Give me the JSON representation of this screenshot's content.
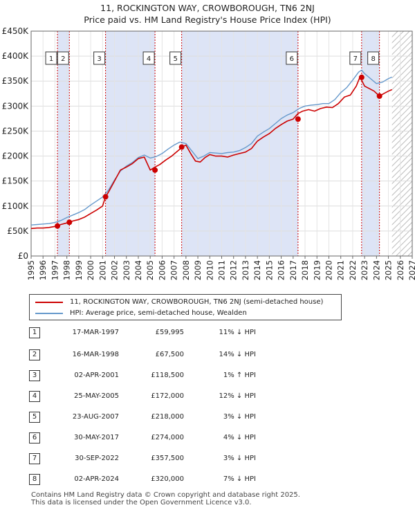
{
  "title": "11, ROCKINGTON WAY, CROWBOROUGH, TN6 2NJ",
  "subtitle": "Price paid vs. HM Land Registry's House Price Index (HPI)",
  "colors": {
    "property": "#cc0000",
    "hpi": "#6699cc",
    "shade": "#dde4f6",
    "marker_line": "#cc0000"
  },
  "chart_data": {
    "type": "line",
    "title": "11, ROCKINGTON WAY, CROWBOROUGH, TN6 2NJ",
    "subtitle": "Price paid vs. HM Land Registry's House Price Index (HPI)",
    "xlim": [
      1995,
      2027
    ],
    "ylim": [
      0,
      450000
    ],
    "x_ticks": [
      1995,
      1996,
      1997,
      1998,
      1999,
      2000,
      2001,
      2002,
      2003,
      2004,
      2005,
      2006,
      2007,
      2008,
      2009,
      2010,
      2011,
      2012,
      2013,
      2014,
      2015,
      2016,
      2017,
      2018,
      2019,
      2020,
      2021,
      2022,
      2023,
      2024,
      2025,
      2026,
      2027
    ],
    "y_ticks": [
      {
        "value": 0,
        "label": "£0"
      },
      {
        "value": 50000,
        "label": "£50K"
      },
      {
        "value": 100000,
        "label": "£100K"
      },
      {
        "value": 150000,
        "label": "£150K"
      },
      {
        "value": 200000,
        "label": "£200K"
      },
      {
        "value": 250000,
        "label": "£250K"
      },
      {
        "value": 300000,
        "label": "£300K"
      },
      {
        "value": 350000,
        "label": "£350K"
      },
      {
        "value": 400000,
        "label": "£400K"
      },
      {
        "value": 450000,
        "label": "£450K"
      }
    ],
    "forecast_from": 2025.3,
    "series": [
      {
        "name": "11, ROCKINGTON WAY, CROWBOROUGH, TN6 2NJ (semi-detached house)",
        "color": "#cc0000",
        "x": [
          1995,
          1995.5,
          1996,
          1996.5,
          1997.2,
          1997.5,
          1998.2,
          1998.5,
          1999,
          1999.5,
          2000,
          2000.5,
          2001.0,
          2001.25,
          2001.5,
          2002,
          2002.5,
          2003,
          2003.5,
          2004,
          2004.5,
          2005.0,
          2005.4,
          2005.8,
          2006.3,
          2006.8,
          2007.4,
          2007.65,
          2008.0,
          2008.4,
          2008.8,
          2009.2,
          2009.6,
          2010,
          2010.5,
          2011,
          2011.5,
          2012,
          2012.5,
          2013,
          2013.5,
          2014,
          2014.5,
          2015,
          2015.5,
          2016,
          2016.5,
          2017.0,
          2017.4,
          2017.8,
          2018.3,
          2018.8,
          2019.3,
          2019.8,
          2020.3,
          2020.8,
          2021.3,
          2021.8,
          2022.3,
          2022.6,
          2022.75,
          2023.0,
          2023.4,
          2023.8,
          2024.25,
          2024.6,
          2025.0,
          2025.3
        ],
        "values": [
          55000,
          56000,
          56000,
          57000,
          59995,
          63000,
          67500,
          70000,
          73000,
          78000,
          85000,
          92000,
          100000,
          118500,
          128000,
          150000,
          172000,
          178000,
          185000,
          195000,
          198000,
          172000,
          178000,
          183000,
          192000,
          200000,
          212000,
          218000,
          222000,
          205000,
          190000,
          188000,
          197000,
          203000,
          200000,
          200000,
          198000,
          202000,
          205000,
          208000,
          215000,
          230000,
          238000,
          245000,
          255000,
          263000,
          270000,
          274000,
          285000,
          290000,
          293000,
          290000,
          295000,
          298000,
          297000,
          305000,
          318000,
          322000,
          340000,
          357500,
          352000,
          340000,
          335000,
          330000,
          320000,
          325000,
          330000,
          333000
        ]
      },
      {
        "name": "HPI: Average price, semi-detached house, Wealden",
        "color": "#6699cc",
        "x": [
          1995,
          1995.5,
          1996,
          1996.5,
          1997,
          1997.5,
          1998,
          1998.5,
          1999,
          1999.5,
          2000,
          2000.5,
          2001,
          2001.5,
          2002,
          2002.5,
          2003,
          2003.5,
          2004,
          2004.5,
          2005,
          2005.5,
          2006,
          2006.5,
          2007,
          2007.5,
          2008,
          2008.5,
          2009,
          2009.5,
          2010,
          2010.5,
          2011,
          2011.5,
          2012,
          2012.5,
          2013,
          2013.5,
          2014,
          2014.5,
          2015,
          2015.5,
          2016,
          2016.5,
          2017,
          2017.5,
          2018,
          2018.5,
          2019,
          2019.5,
          2020,
          2020.5,
          2021,
          2021.5,
          2022,
          2022.5,
          2022.75,
          2023,
          2023.5,
          2024,
          2024.5,
          2025,
          2025.3
        ],
        "values": [
          62000,
          63000,
          64000,
          65000,
          67000,
          71000,
          77000,
          82000,
          87000,
          93000,
          102000,
          110000,
          118000,
          132000,
          152000,
          170000,
          180000,
          187000,
          197000,
          202000,
          196000,
          199000,
          205000,
          214000,
          222000,
          228000,
          225000,
          210000,
          195000,
          200000,
          207000,
          206000,
          205000,
          207000,
          208000,
          211000,
          217000,
          225000,
          240000,
          248000,
          255000,
          265000,
          275000,
          282000,
          287000,
          295000,
          300000,
          302000,
          303000,
          305000,
          305000,
          313000,
          327000,
          337000,
          352000,
          368000,
          372000,
          365000,
          355000,
          345000,
          348000,
          355000,
          358000
        ]
      }
    ],
    "sales": [
      {
        "n": "1",
        "x": 1997.21,
        "price": 59995
      },
      {
        "n": "2",
        "x": 1998.21,
        "price": 67500
      },
      {
        "n": "3",
        "x": 2001.25,
        "price": 118500
      },
      {
        "n": "4",
        "x": 2005.4,
        "price": 172000
      },
      {
        "n": "5",
        "x": 2007.64,
        "price": 218000
      },
      {
        "n": "6",
        "x": 2017.41,
        "price": 274000
      },
      {
        "n": "7",
        "x": 2022.75,
        "price": 357500
      },
      {
        "n": "8",
        "x": 2024.25,
        "price": 320000
      }
    ],
    "shaded_ranges": [
      [
        1997.21,
        1998.21
      ],
      [
        2001.25,
        2005.4
      ],
      [
        2007.64,
        2017.41
      ],
      [
        2022.75,
        2024.25
      ]
    ]
  },
  "legend": {
    "property_label": "11, ROCKINGTON WAY, CROWBOROUGH, TN6 2NJ (semi-detached house)",
    "hpi_label": "HPI: Average price, semi-detached house, Wealden"
  },
  "sales_table": [
    {
      "n": "1",
      "date": "17-MAR-1997",
      "price": "£59,995",
      "hpi": "11% ↓ HPI"
    },
    {
      "n": "2",
      "date": "16-MAR-1998",
      "price": "£67,500",
      "hpi": "14% ↓ HPI"
    },
    {
      "n": "3",
      "date": "02-APR-2001",
      "price": "£118,500",
      "hpi": "1% ↑ HPI"
    },
    {
      "n": "4",
      "date": "25-MAY-2005",
      "price": "£172,000",
      "hpi": "12% ↓ HPI"
    },
    {
      "n": "5",
      "date": "23-AUG-2007",
      "price": "£218,000",
      "hpi": "3% ↓ HPI"
    },
    {
      "n": "6",
      "date": "30-MAY-2017",
      "price": "£274,000",
      "hpi": "4% ↓ HPI"
    },
    {
      "n": "7",
      "date": "30-SEP-2022",
      "price": "£357,500",
      "hpi": "3% ↓ HPI"
    },
    {
      "n": "8",
      "date": "02-APR-2024",
      "price": "£320,000",
      "hpi": "7% ↓ HPI"
    }
  ],
  "footer": {
    "line1": "Contains HM Land Registry data © Crown copyright and database right 2025.",
    "line2": "This data is licensed under the Open Government Licence v3.0."
  }
}
